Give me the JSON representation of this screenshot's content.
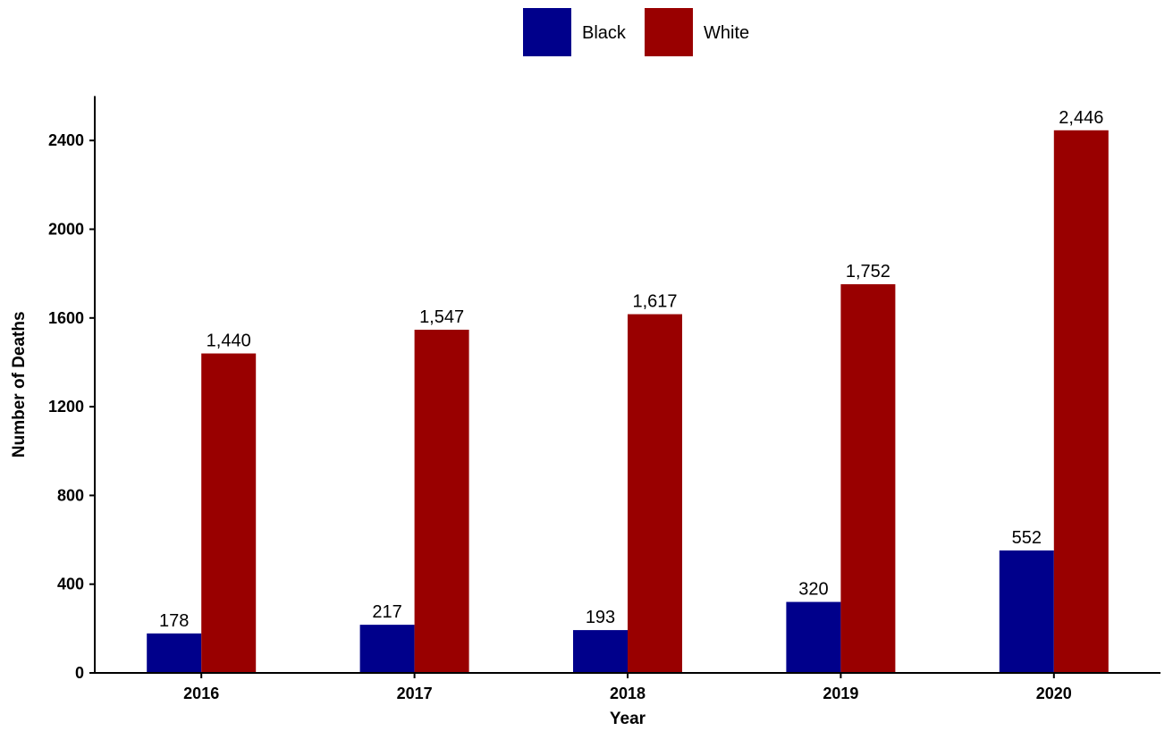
{
  "chart_data": {
    "type": "bar",
    "categories": [
      "2016",
      "2017",
      "2018",
      "2019",
      "2020"
    ],
    "series": [
      {
        "name": "Black",
        "color": "#00008B",
        "values": [
          178,
          217,
          193,
          320,
          552
        ],
        "labels": [
          "178",
          "217",
          "193",
          "320",
          "552"
        ]
      },
      {
        "name": "White",
        "color": "#990000",
        "values": [
          1440,
          1547,
          1617,
          1752,
          2446
        ],
        "labels": [
          "1,440",
          "1,547",
          "1,617",
          "1,752",
          "2,446"
        ]
      }
    ],
    "title": "",
    "xlabel": "Year",
    "ylabel": "Number of Deaths",
    "ylim": [
      0,
      2600
    ],
    "yticks": [
      0,
      400,
      800,
      1200,
      1600,
      2000,
      2400
    ],
    "ytick_labels": [
      "0",
      "400",
      "800",
      "1200",
      "1600",
      "2000",
      "2400"
    ],
    "grid": false,
    "legend_position": "top-center"
  }
}
